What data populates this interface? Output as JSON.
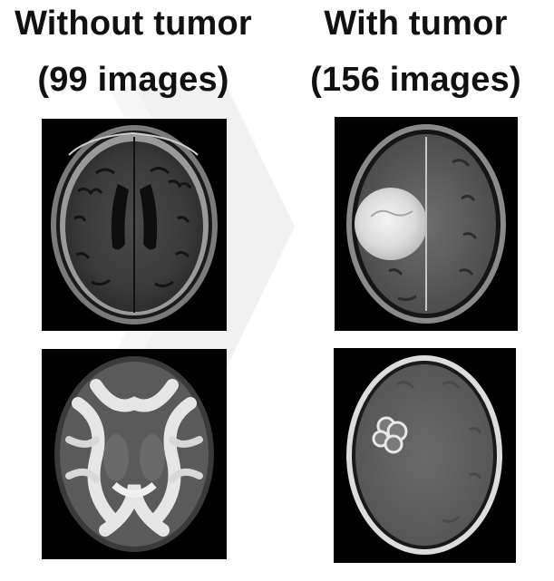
{
  "columns": [
    {
      "title_line1": "Without tumor",
      "title_line2": "(99 images)"
    },
    {
      "title_line1": "With tumor",
      "title_line2": "(156 images)"
    }
  ],
  "colors": {
    "background": "#ffffff",
    "text": "#111111",
    "scan_background": "#000000"
  }
}
